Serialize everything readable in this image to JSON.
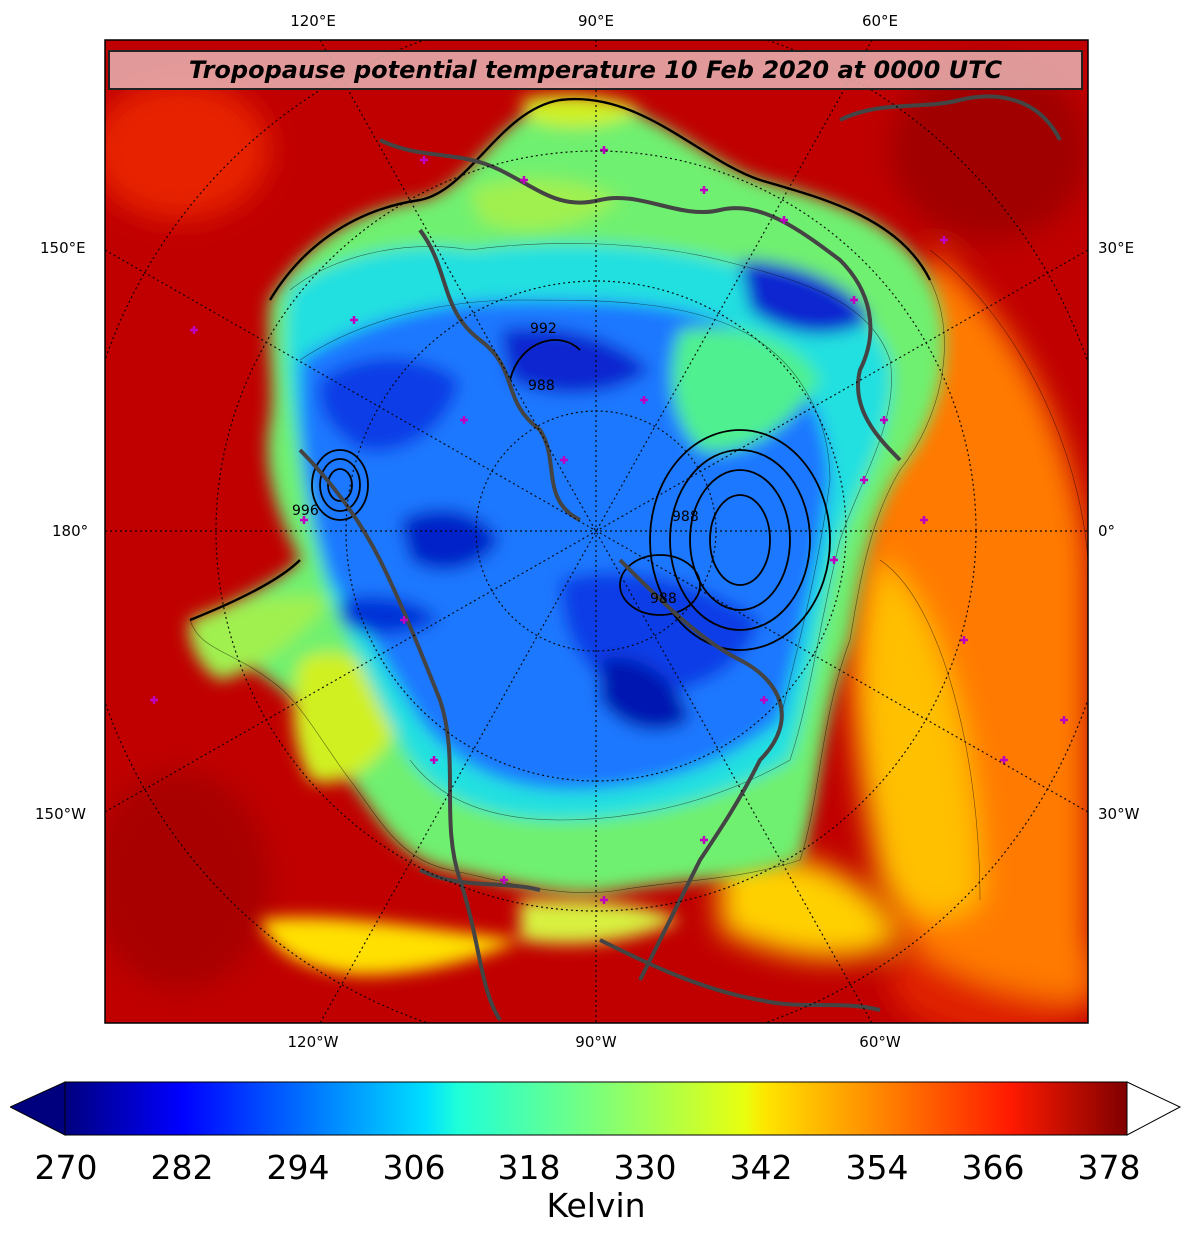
{
  "title": "Tropopause potential temperature 10 Feb 2020 at 0000 UTC",
  "longitude_labels": {
    "top": [
      "120°E",
      "90°E",
      "60°E"
    ],
    "bottom": [
      "120°W",
      "90°W",
      "60°W"
    ],
    "left": [
      "150°E",
      "180°",
      "150°W"
    ],
    "right": [
      "30°E",
      "0°",
      "30°W"
    ]
  },
  "contour_labels": [
    "992",
    "988",
    "996",
    "988",
    "988"
  ],
  "colorbar": {
    "label": "Kelvin",
    "ticks": [
      "270",
      "282",
      "294",
      "306",
      "318",
      "330",
      "342",
      "354",
      "366",
      "378"
    ],
    "range": [
      270,
      381
    ],
    "colormap": "jet",
    "extend": "both"
  },
  "colors": {
    "ocean_warm": "#b40000",
    "coastline": "#444444",
    "station_marker": "#c000c0",
    "frame": "#000000"
  }
}
